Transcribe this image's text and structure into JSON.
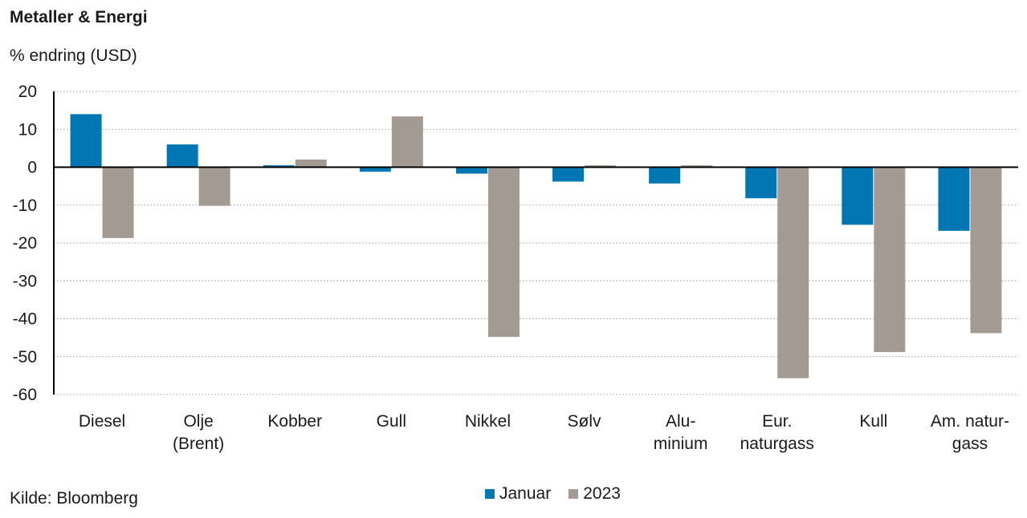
{
  "title": "Metaller & Energi",
  "subtitle": "% endring (USD)",
  "source": "Kilde: Bloomberg",
  "colors": {
    "januar": "#0077b3",
    "y2023": "#a39a94",
    "grid": "#b5b5b5",
    "axis": "#000000"
  },
  "chart_data": {
    "type": "bar",
    "categories": [
      [
        "Diesel"
      ],
      [
        "Olje",
        "(Brent)"
      ],
      [
        "Kobber"
      ],
      [
        "Gull"
      ],
      [
        "Nikkel"
      ],
      [
        "Sølv"
      ],
      [
        "Alu-",
        "minium"
      ],
      [
        "Eur.",
        "naturgass"
      ],
      [
        "Kull"
      ],
      [
        "Am. natur-",
        "gass"
      ]
    ],
    "series": [
      {
        "name": "Januar",
        "values": [
          14,
          6,
          0.5,
          -1.2,
          -1.7,
          -3.8,
          -4.3,
          -8.2,
          -15.2,
          -16.8
        ]
      },
      {
        "name": "2023",
        "values": [
          -18.7,
          -10.2,
          2,
          13.4,
          -44.8,
          0.5,
          0.5,
          -55.7,
          -48.8,
          -43.8
        ]
      }
    ],
    "ylim": [
      -60,
      20
    ],
    "yticks": [
      "20",
      "10",
      "0",
      "-10",
      "-20",
      "-30",
      "-40",
      "-50",
      "-60"
    ],
    "grid": true,
    "legend": "bottom-center"
  }
}
